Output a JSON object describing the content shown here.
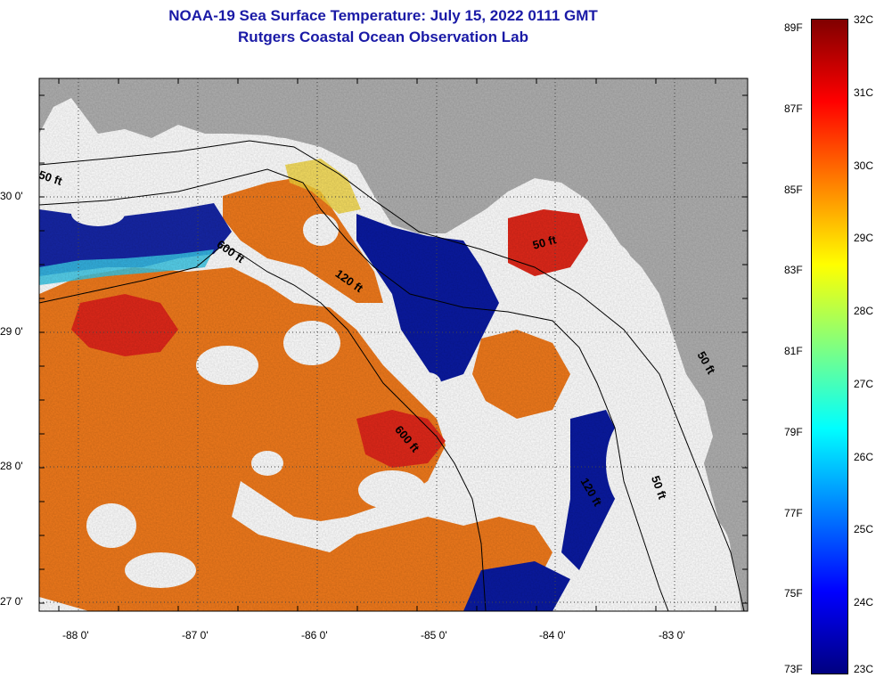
{
  "title_line1": "NOAA-19 Sea Surface Temperature:  July 15, 2022 0111 GMT",
  "title_line2": "Rutgers Coastal Ocean Observation Lab",
  "longitude_labels": [
    "-88 0'",
    "-87 0'",
    "-86 0'",
    "-85 0'",
    "-84 0'",
    "-83 0'"
  ],
  "latitude_labels": [
    "30 0'",
    "29 0'",
    "28 0'",
    "27 0'"
  ],
  "colorbar": {
    "celsius_labels": [
      "32C",
      "31C",
      "30C",
      "29C",
      "28C",
      "27C",
      "26C",
      "25C",
      "24C",
      "23C"
    ],
    "fahrenheit_labels": [
      "89F",
      "87F",
      "85F",
      "83F",
      "81F",
      "79F",
      "77F",
      "75F",
      "73F"
    ],
    "colors": [
      "#000080",
      "#0000ff",
      "#0080ff",
      "#00ffff",
      "#80ff80",
      "#ffff00",
      "#ff8000",
      "#ff0000",
      "#800000"
    ]
  },
  "contour_labels": [
    {
      "text": "50 ft"
    },
    {
      "text": "600 ft"
    },
    {
      "text": "120 ft"
    },
    {
      "text": "50 ft"
    },
    {
      "text": "600 ft"
    },
    {
      "text": "120 ft"
    },
    {
      "text": "50 ft"
    },
    {
      "text": "50 ft"
    }
  ],
  "colors": {
    "land": "#b0b0b0",
    "cloud": "#ffffff",
    "warm": "#f07a1c",
    "hot": "#e8201a",
    "cool": "#0a1aa0",
    "grid": "#444444"
  }
}
